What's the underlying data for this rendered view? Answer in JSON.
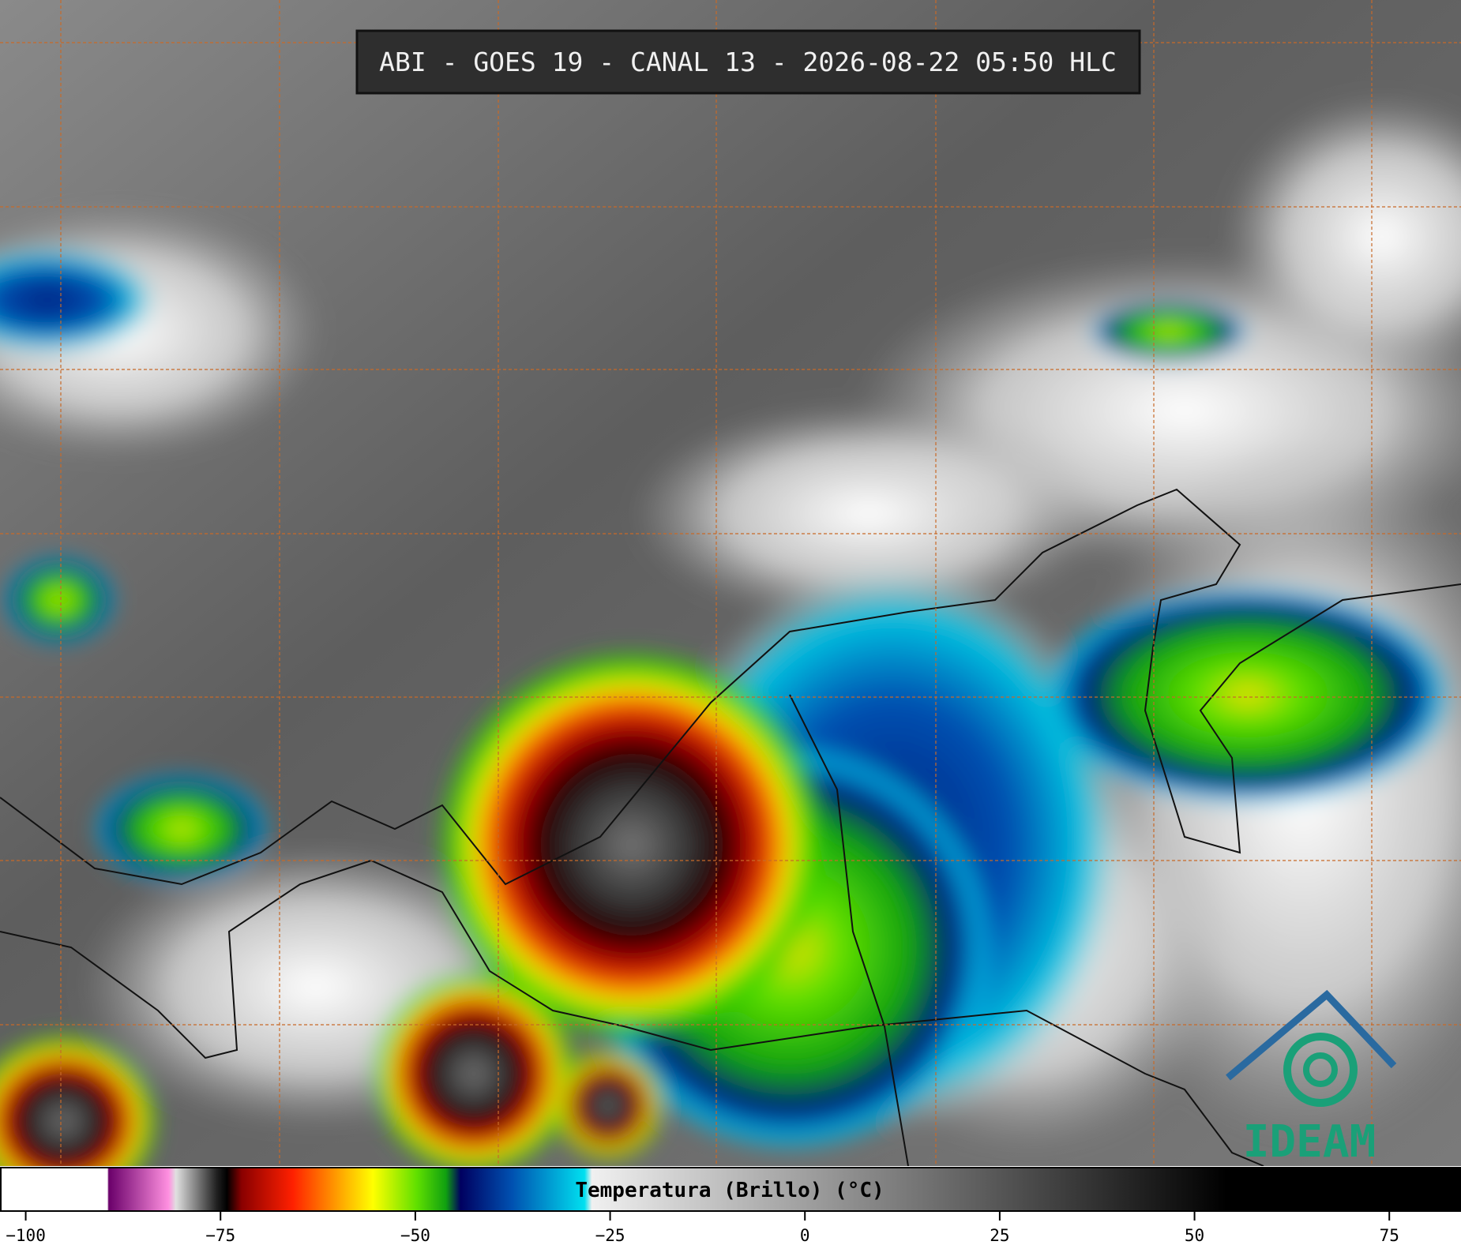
{
  "header": {
    "title": "ABI - GOES 19 - CANAL 13 - 2026-08-22 05:50 HLC"
  },
  "colorbar": {
    "label": "Temperatura (Brillo) (°C)",
    "xlim": [
      -103.3,
      84.2
    ],
    "xticks": [
      {
        "value": -100,
        "label": "−100"
      },
      {
        "value": -75,
        "label": "−75"
      },
      {
        "value": -50,
        "label": "−50"
      },
      {
        "value": -25,
        "label": "−25"
      },
      0,
      25,
      50,
      75
    ]
  },
  "logo": {
    "text": "IDEAM"
  }
}
